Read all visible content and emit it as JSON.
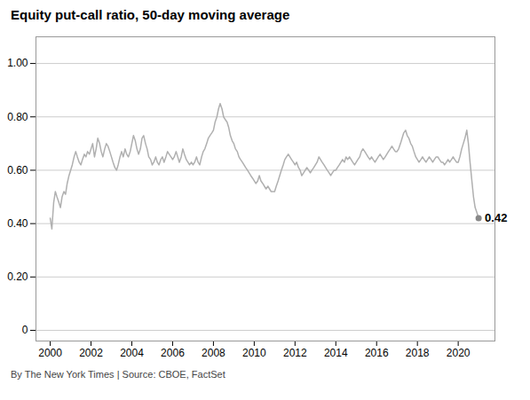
{
  "chart_data": {
    "type": "line",
    "title": "Equity put-call ratio, 50-day moving average",
    "source": "By The New York Times | Source: CBOE, FactSet",
    "color": "#b0b0b0",
    "grid": true,
    "xlim": [
      1999.3,
      2021.8
    ],
    "xticks": [
      2000,
      2002,
      2004,
      2006,
      2008,
      2010,
      2012,
      2014,
      2016,
      2018,
      2020
    ],
    "ylim": [
      -0.04,
      1.1
    ],
    "yticks": [
      0,
      {
        "value": 0.2,
        "label": "0.20"
      },
      {
        "value": 0.4,
        "label": "0.40"
      },
      {
        "value": 0.6,
        "label": "0.60"
      },
      {
        "value": 0.8,
        "label": "0.80"
      },
      {
        "value": 1,
        "label": "1.00"
      }
    ],
    "annotations": [
      {
        "text": "0.42",
        "x": 2021.0,
        "y": 0.42,
        "color": "#888888"
      }
    ],
    "x": [
      2000.0,
      2000.08,
      2000.17,
      2000.25,
      2000.33,
      2000.42,
      2000.5,
      2000.58,
      2000.67,
      2000.75,
      2000.83,
      2000.92,
      2001.0,
      2001.08,
      2001.17,
      2001.25,
      2001.33,
      2001.42,
      2001.5,
      2001.58,
      2001.67,
      2001.75,
      2001.83,
      2001.92,
      2002.0,
      2002.08,
      2002.17,
      2002.25,
      2002.33,
      2002.42,
      2002.5,
      2002.58,
      2002.67,
      2002.75,
      2002.83,
      2002.92,
      2003.0,
      2003.08,
      2003.17,
      2003.25,
      2003.33,
      2003.42,
      2003.5,
      2003.58,
      2003.67,
      2003.75,
      2003.83,
      2003.92,
      2004.0,
      2004.08,
      2004.17,
      2004.25,
      2004.33,
      2004.42,
      2004.5,
      2004.58,
      2004.67,
      2004.75,
      2004.83,
      2004.92,
      2005.0,
      2005.08,
      2005.17,
      2005.25,
      2005.33,
      2005.42,
      2005.5,
      2005.58,
      2005.67,
      2005.75,
      2005.83,
      2005.92,
      2006.0,
      2006.08,
      2006.17,
      2006.25,
      2006.33,
      2006.42,
      2006.5,
      2006.58,
      2006.67,
      2006.75,
      2006.83,
      2006.92,
      2007.0,
      2007.08,
      2007.17,
      2007.25,
      2007.33,
      2007.42,
      2007.5,
      2007.58,
      2007.67,
      2007.75,
      2007.83,
      2007.92,
      2008.0,
      2008.08,
      2008.17,
      2008.25,
      2008.33,
      2008.42,
      2008.5,
      2008.58,
      2008.67,
      2008.75,
      2008.83,
      2008.92,
      2009.0,
      2009.08,
      2009.17,
      2009.25,
      2009.33,
      2009.42,
      2009.5,
      2009.58,
      2009.67,
      2009.75,
      2009.83,
      2009.92,
      2010.0,
      2010.08,
      2010.17,
      2010.25,
      2010.33,
      2010.42,
      2010.5,
      2010.58,
      2010.67,
      2010.75,
      2010.83,
      2010.92,
      2011.0,
      2011.08,
      2011.17,
      2011.25,
      2011.33,
      2011.42,
      2011.5,
      2011.58,
      2011.67,
      2011.75,
      2011.83,
      2011.92,
      2012.0,
      2012.08,
      2012.17,
      2012.25,
      2012.33,
      2012.42,
      2012.5,
      2012.58,
      2012.67,
      2012.75,
      2012.83,
      2012.92,
      2013.0,
      2013.08,
      2013.17,
      2013.25,
      2013.33,
      2013.42,
      2013.5,
      2013.58,
      2013.67,
      2013.75,
      2013.83,
      2013.92,
      2014.0,
      2014.08,
      2014.17,
      2014.25,
      2014.33,
      2014.42,
      2014.5,
      2014.58,
      2014.67,
      2014.75,
      2014.83,
      2014.92,
      2015.0,
      2015.08,
      2015.17,
      2015.25,
      2015.33,
      2015.42,
      2015.5,
      2015.58,
      2015.67,
      2015.75,
      2015.83,
      2015.92,
      2016.0,
      2016.08,
      2016.17,
      2016.25,
      2016.33,
      2016.42,
      2016.5,
      2016.58,
      2016.67,
      2016.75,
      2016.83,
      2016.92,
      2017.0,
      2017.08,
      2017.17,
      2017.25,
      2017.33,
      2017.42,
      2017.5,
      2017.58,
      2017.67,
      2017.75,
      2017.83,
      2017.92,
      2018.0,
      2018.08,
      2018.17,
      2018.25,
      2018.33,
      2018.42,
      2018.5,
      2018.58,
      2018.67,
      2018.75,
      2018.83,
      2018.92,
      2019.0,
      2019.08,
      2019.17,
      2019.25,
      2019.33,
      2019.42,
      2019.5,
      2019.58,
      2019.67,
      2019.75,
      2019.83,
      2019.92,
      2020.0,
      2020.08,
      2020.17,
      2020.25,
      2020.33,
      2020.42,
      2020.5,
      2020.58,
      2020.67,
      2020.75,
      2020.83,
      2020.92,
      2021.0
    ],
    "values": [
      0.42,
      0.38,
      0.48,
      0.52,
      0.5,
      0.48,
      0.46,
      0.5,
      0.52,
      0.51,
      0.55,
      0.58,
      0.6,
      0.62,
      0.65,
      0.67,
      0.65,
      0.63,
      0.62,
      0.64,
      0.66,
      0.65,
      0.67,
      0.66,
      0.68,
      0.7,
      0.65,
      0.68,
      0.72,
      0.7,
      0.67,
      0.65,
      0.68,
      0.7,
      0.69,
      0.67,
      0.65,
      0.63,
      0.61,
      0.6,
      0.62,
      0.65,
      0.67,
      0.65,
      0.68,
      0.66,
      0.65,
      0.67,
      0.7,
      0.73,
      0.71,
      0.68,
      0.66,
      0.68,
      0.72,
      0.73,
      0.7,
      0.68,
      0.65,
      0.64,
      0.62,
      0.63,
      0.65,
      0.63,
      0.62,
      0.64,
      0.65,
      0.63,
      0.65,
      0.67,
      0.66,
      0.65,
      0.64,
      0.65,
      0.67,
      0.65,
      0.63,
      0.65,
      0.68,
      0.66,
      0.64,
      0.63,
      0.62,
      0.63,
      0.62,
      0.63,
      0.65,
      0.63,
      0.62,
      0.65,
      0.67,
      0.68,
      0.7,
      0.72,
      0.73,
      0.74,
      0.75,
      0.78,
      0.8,
      0.83,
      0.85,
      0.83,
      0.8,
      0.79,
      0.78,
      0.76,
      0.73,
      0.71,
      0.7,
      0.68,
      0.67,
      0.65,
      0.64,
      0.63,
      0.62,
      0.61,
      0.6,
      0.59,
      0.58,
      0.57,
      0.56,
      0.55,
      0.56,
      0.58,
      0.56,
      0.55,
      0.54,
      0.53,
      0.54,
      0.53,
      0.52,
      0.52,
      0.52,
      0.54,
      0.56,
      0.58,
      0.6,
      0.62,
      0.64,
      0.65,
      0.66,
      0.65,
      0.64,
      0.63,
      0.62,
      0.63,
      0.61,
      0.6,
      0.58,
      0.59,
      0.6,
      0.61,
      0.6,
      0.59,
      0.6,
      0.61,
      0.62,
      0.63,
      0.65,
      0.64,
      0.63,
      0.62,
      0.61,
      0.6,
      0.59,
      0.58,
      0.59,
      0.6,
      0.6,
      0.61,
      0.62,
      0.63,
      0.64,
      0.63,
      0.65,
      0.64,
      0.65,
      0.64,
      0.63,
      0.62,
      0.63,
      0.64,
      0.65,
      0.67,
      0.68,
      0.67,
      0.66,
      0.65,
      0.64,
      0.65,
      0.64,
      0.63,
      0.64,
      0.65,
      0.66,
      0.65,
      0.64,
      0.65,
      0.66,
      0.67,
      0.68,
      0.69,
      0.68,
      0.67,
      0.67,
      0.68,
      0.7,
      0.72,
      0.74,
      0.75,
      0.73,
      0.72,
      0.7,
      0.69,
      0.67,
      0.65,
      0.64,
      0.63,
      0.64,
      0.65,
      0.64,
      0.63,
      0.64,
      0.65,
      0.64,
      0.63,
      0.64,
      0.65,
      0.65,
      0.64,
      0.63,
      0.63,
      0.62,
      0.63,
      0.64,
      0.63,
      0.64,
      0.65,
      0.64,
      0.63,
      0.63,
      0.65,
      0.68,
      0.7,
      0.72,
      0.75,
      0.7,
      0.63,
      0.56,
      0.5,
      0.46,
      0.44,
      0.42
    ]
  }
}
